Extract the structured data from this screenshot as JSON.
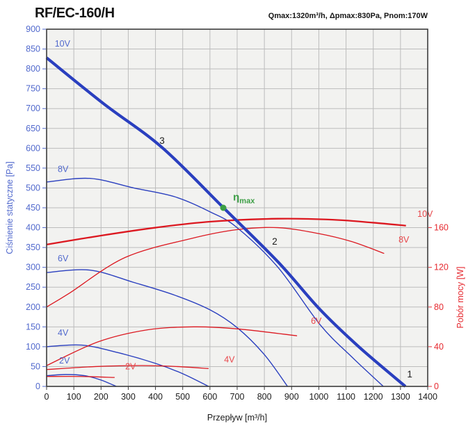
{
  "header": {
    "title": "RF/EC-160/H",
    "specs": "Qmax:1320m³/h, Δpmax:830Pa, Pnom:170W"
  },
  "axes": {
    "x": {
      "label": "Przepływ [m³/h]",
      "min": 0,
      "max": 1400,
      "step": 100,
      "color": "#1b1b1b"
    },
    "y_left": {
      "label": "Ciśnienie statyczne [Pa]",
      "min": 0,
      "max": 900,
      "step": 50,
      "color": "#5169cd"
    },
    "y_right": {
      "label": "Pobór mocy [W]",
      "min": 0,
      "max": 160,
      "step": 40,
      "pa_per_watt": 2.5,
      "color": "#e62a30"
    }
  },
  "colors": {
    "pressure_curve": "#2a3fbf",
    "power_curve": "#dc1820",
    "pressure_label": "#5169cd",
    "power_label": "#e8474b",
    "marker_green": "#3b9e44",
    "point_label": "#1b1b1b",
    "grid": "#bcbcbc",
    "plot_bg": "#f2f2f0",
    "frame": "#3c3c3c"
  },
  "chart_data": {
    "type": "line",
    "title": "RF/EC-160/H",
    "xlabel": "Przepływ [m³/h]",
    "ylabel_left": "Ciśnienie statyczne [Pa]",
    "ylabel_right": "Pobór mocy [W]",
    "x_range": [
      0,
      1400
    ],
    "y_left_range": [
      0,
      900
    ],
    "y_right_range": [
      0,
      160
    ],
    "grid": true,
    "series": [
      {
        "id": "pressure-2v",
        "name": "Static pressure 2V",
        "label": "2V",
        "group": "pressure",
        "unit": "Pa",
        "points": [
          [
            0,
            27
          ],
          [
            70,
            30
          ],
          [
            140,
            27
          ],
          [
            200,
            16
          ],
          [
            256,
            0
          ]
        ],
        "label_pos": [
          46,
          58
        ]
      },
      {
        "id": "pressure-4v",
        "name": "Static pressure 4V",
        "label": "4V",
        "group": "pressure",
        "unit": "Pa",
        "points": [
          [
            0,
            100
          ],
          [
            130,
            104
          ],
          [
            263,
            85
          ],
          [
            400,
            58
          ],
          [
            500,
            32
          ],
          [
            595,
            0
          ]
        ],
        "label_pos": [
          41,
          128
        ]
      },
      {
        "id": "pressure-6v",
        "name": "Static pressure 6V",
        "label": "6V",
        "group": "pressure",
        "unit": "Pa",
        "points": [
          [
            0,
            287
          ],
          [
            160,
            293
          ],
          [
            320,
            262
          ],
          [
            470,
            230
          ],
          [
            600,
            193
          ],
          [
            700,
            148
          ],
          [
            800,
            80
          ],
          [
            885,
            0
          ]
        ],
        "label_pos": [
          41,
          315
        ]
      },
      {
        "id": "pressure-8v",
        "name": "Static pressure 8V",
        "label": "8V",
        "group": "pressure",
        "unit": "Pa",
        "points": [
          [
            0,
            515
          ],
          [
            160,
            524
          ],
          [
            320,
            500
          ],
          [
            470,
            478
          ],
          [
            600,
            440
          ],
          [
            698,
            401
          ],
          [
            850,
            300
          ],
          [
            1004,
            156
          ],
          [
            1120,
            75
          ],
          [
            1237,
            0
          ]
        ],
        "label_pos": [
          41,
          540
        ]
      },
      {
        "id": "pressure-10v",
        "name": "Static pressure 10V",
        "label": "10V",
        "group": "pressure",
        "unit": "Pa",
        "thick": true,
        "points": [
          [
            0,
            828
          ],
          [
            210,
            712
          ],
          [
            424,
            602
          ],
          [
            650,
            450
          ],
          [
            851,
            313
          ],
          [
            1004,
            194
          ],
          [
            1150,
            98
          ],
          [
            1318,
            0
          ]
        ],
        "label_pos": [
          30,
          856
        ]
      },
      {
        "id": "power-2v",
        "name": "Power input 2V",
        "label": "2V",
        "group": "power",
        "unit": "W",
        "points": [
          [
            0,
            10
          ],
          [
            125,
            10
          ],
          [
            250,
            9
          ]
        ],
        "label_pos": [
          289,
          17
        ]
      },
      {
        "id": "power-4v",
        "name": "Power input 4V",
        "label": "4V",
        "group": "power",
        "unit": "W",
        "points": [
          [
            0,
            17
          ],
          [
            180,
            20
          ],
          [
            350,
            21
          ],
          [
            480,
            20
          ],
          [
            595,
            18
          ]
        ],
        "label_pos": [
          652,
          24
        ]
      },
      {
        "id": "power-6v",
        "name": "Power input 6V",
        "label": "6V",
        "group": "power",
        "unit": "W",
        "points": [
          [
            0,
            21
          ],
          [
            190,
            45
          ],
          [
            370,
            57
          ],
          [
            540,
            60
          ],
          [
            700,
            58
          ],
          [
            920,
            51
          ]
        ],
        "label_pos": [
          971,
          63
        ]
      },
      {
        "id": "power-8v",
        "name": "Power input 8V",
        "label": "8V",
        "group": "power",
        "unit": "W",
        "points": [
          [
            0,
            80
          ],
          [
            84,
            94
          ],
          [
            289,
            130
          ],
          [
            531,
            149
          ],
          [
            700,
            158
          ],
          [
            850,
            160
          ],
          [
            1000,
            154
          ],
          [
            1120,
            146
          ],
          [
            1240,
            134
          ]
        ],
        "label_pos": [
          1293,
          145
        ]
      },
      {
        "id": "power-10v",
        "name": "Power input 10V",
        "label": "10V",
        "group": "power",
        "unit": "W",
        "thick": true,
        "points": [
          [
            0,
            143
          ],
          [
            200,
            152
          ],
          [
            400,
            160
          ],
          [
            600,
            166
          ],
          [
            850,
            169
          ],
          [
            1050,
            168
          ],
          [
            1200,
            165
          ],
          [
            1320,
            162
          ]
        ],
        "label_pos": [
          1362,
          171
        ]
      }
    ],
    "markers": {
      "eta_max": {
        "base": "η",
        "sub": "max",
        "flow": 649,
        "pressure": 450,
        "label_flow": 685,
        "label_pressure": 468
      },
      "operating_points": [
        {
          "text": "1",
          "flow": 1334,
          "pressure": 23
        },
        {
          "text": "2",
          "flow": 838,
          "pressure": 357
        },
        {
          "text": "3",
          "flow": 424,
          "pressure": 611
        }
      ]
    }
  }
}
